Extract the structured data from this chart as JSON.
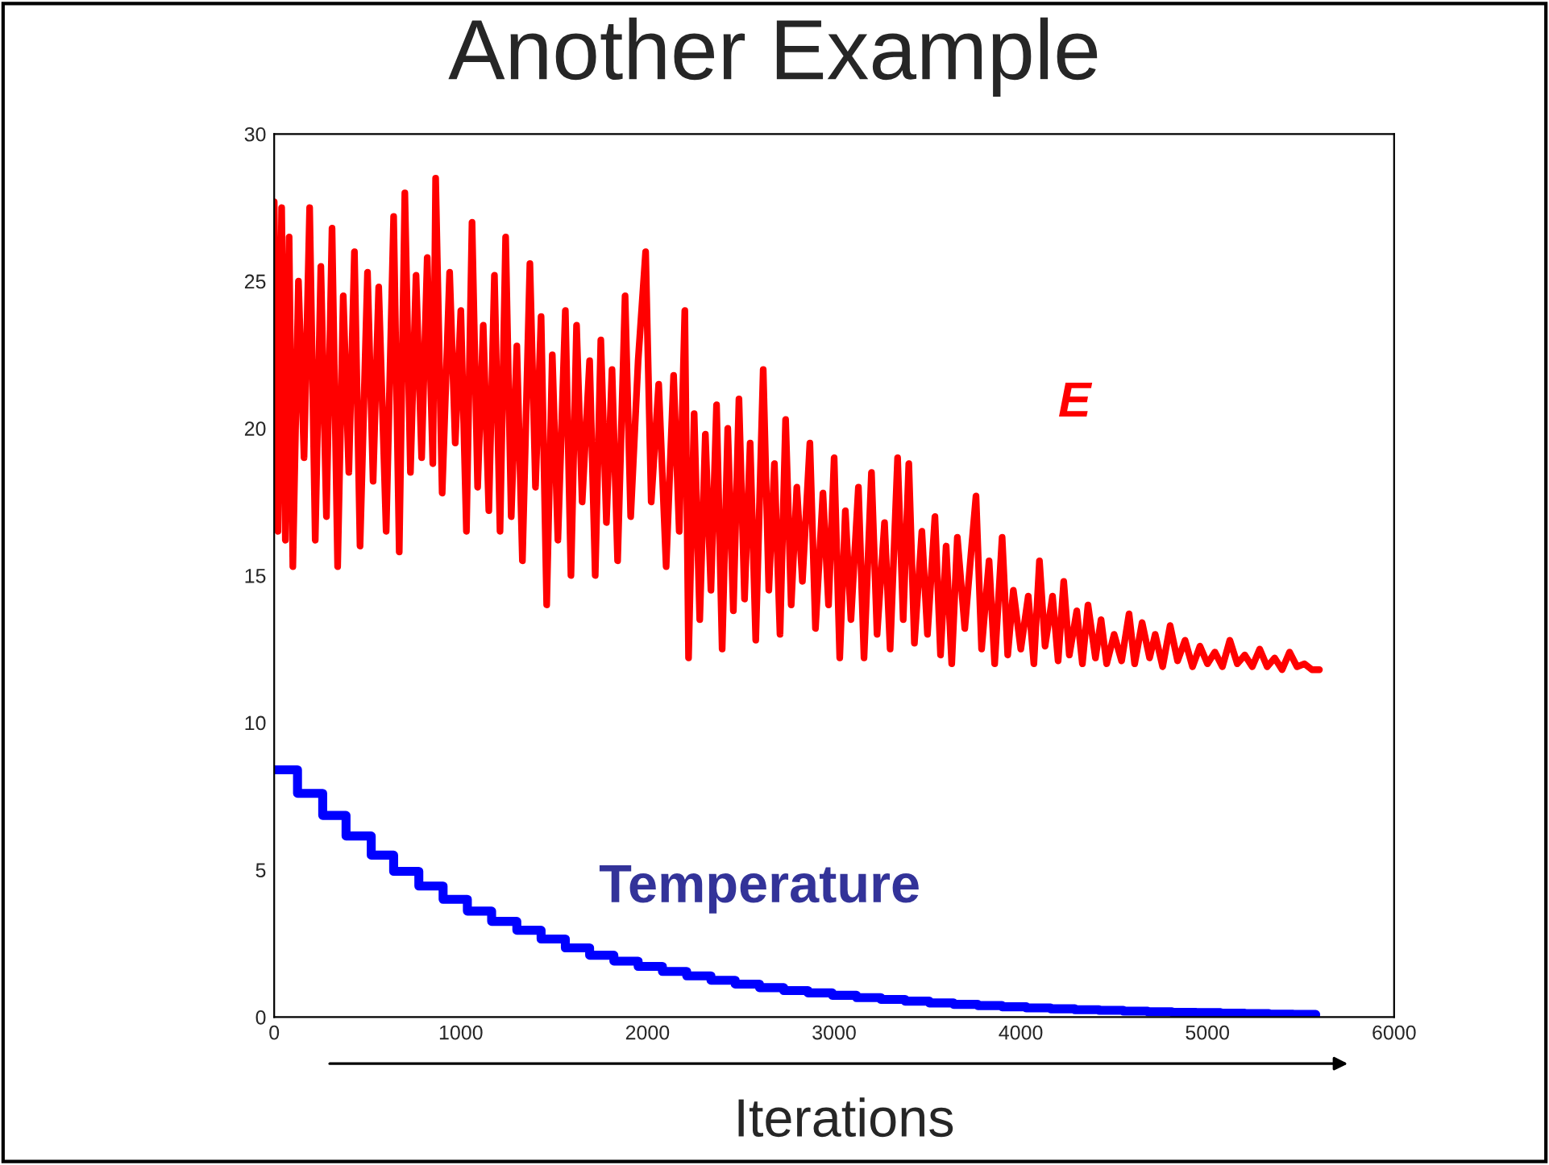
{
  "chart_data": {
    "type": "line",
    "title": "Another Example",
    "xlabel": "Iterations",
    "xlim": [
      0,
      6000
    ],
    "xticks": [
      0,
      1000,
      2000,
      3000,
      4000,
      5000,
      6000
    ],
    "ylim": [
      0,
      30
    ],
    "yticks": [
      0,
      5,
      10,
      15,
      20,
      25,
      30
    ],
    "grid": false,
    "legend": false,
    "series": [
      {
        "name": "E",
        "color": "#ff0000",
        "x": [
          0,
          20,
          40,
          60,
          80,
          100,
          130,
          160,
          190,
          220,
          250,
          280,
          310,
          340,
          370,
          400,
          430,
          460,
          500,
          530,
          560,
          600,
          640,
          670,
          700,
          730,
          760,
          790,
          820,
          850,
          865,
          900,
          940,
          970,
          1000,
          1030,
          1060,
          1090,
          1120,
          1150,
          1180,
          1210,
          1240,
          1270,
          1300,
          1330,
          1370,
          1400,
          1430,
          1460,
          1490,
          1520,
          1560,
          1590,
          1620,
          1650,
          1690,
          1720,
          1750,
          1780,
          1810,
          1840,
          1880,
          1910,
          1950,
          1990,
          2020,
          2060,
          2100,
          2140,
          2170,
          2200,
          2220,
          2250,
          2280,
          2310,
          2340,
          2370,
          2400,
          2430,
          2460,
          2490,
          2520,
          2550,
          2580,
          2620,
          2650,
          2680,
          2710,
          2740,
          2770,
          2800,
          2830,
          2870,
          2900,
          2940,
          2970,
          3000,
          3030,
          3060,
          3090,
          3130,
          3160,
          3200,
          3230,
          3270,
          3300,
          3340,
          3370,
          3400,
          3430,
          3470,
          3500,
          3540,
          3570,
          3600,
          3630,
          3660,
          3700,
          3730,
          3760,
          3790,
          3830,
          3860,
          3900,
          3930,
          3960,
          4000,
          4040,
          4070,
          4100,
          4130,
          4170,
          4200,
          4230,
          4260,
          4300,
          4330,
          4360,
          4400,
          4430,
          4460,
          4500,
          4540,
          4580,
          4610,
          4650,
          4690,
          4720,
          4760,
          4800,
          4840,
          4880,
          4920,
          4960,
          5000,
          5040,
          5080,
          5120,
          5160,
          5200,
          5240,
          5280,
          5320,
          5360,
          5400,
          5440,
          5480,
          5520,
          5560,
          5600
        ],
        "values": [
          27.7,
          16.5,
          27.5,
          16.2,
          26.5,
          15.3,
          25.0,
          19.0,
          27.5,
          16.2,
          25.5,
          17.0,
          26.8,
          15.3,
          24.5,
          18.5,
          26.0,
          16.0,
          25.3,
          18.2,
          24.8,
          16.5,
          27.2,
          15.8,
          28.0,
          18.5,
          25.2,
          19.0,
          25.8,
          18.8,
          28.5,
          17.8,
          25.3,
          19.5,
          24.0,
          16.5,
          27.0,
          18.0,
          23.5,
          17.2,
          25.2,
          16.5,
          26.5,
          17.0,
          22.8,
          15.5,
          25.6,
          18.0,
          23.8,
          14.0,
          22.5,
          16.2,
          24.0,
          15.0,
          23.5,
          17.5,
          22.3,
          15.0,
          23.0,
          16.8,
          22.0,
          15.5,
          24.5,
          17.0,
          22.3,
          26.0,
          17.5,
          21.5,
          15.3,
          21.8,
          16.5,
          24.0,
          12.2,
          20.5,
          13.5,
          19.8,
          14.5,
          20.8,
          12.5,
          20.0,
          13.8,
          21.0,
          14.2,
          19.5,
          12.8,
          22.0,
          14.5,
          18.8,
          13.0,
          20.3,
          14.0,
          18.0,
          14.8,
          19.5,
          13.2,
          17.8,
          14.0,
          19.0,
          12.2,
          17.2,
          13.5,
          18.0,
          12.2,
          18.5,
          13.0,
          16.8,
          12.5,
          19.0,
          13.5,
          18.8,
          12.7,
          16.5,
          13.0,
          17.0,
          12.3,
          16.0,
          12.0,
          16.3,
          13.2,
          15.5,
          17.7,
          12.5,
          15.5,
          12.0,
          16.3,
          12.3,
          14.5,
          12.5,
          14.3,
          12.0,
          15.5,
          12.6,
          14.3,
          12.1,
          14.8,
          12.3,
          13.8,
          12.0,
          14.0,
          12.2,
          13.5,
          12.0,
          13.0,
          12.1,
          13.7,
          12.0,
          13.4,
          12.2,
          13.0,
          11.9,
          13.3,
          12.1,
          12.8,
          11.9,
          12.6,
          12.0,
          12.4,
          11.9,
          12.8,
          12.0,
          12.3,
          11.9,
          12.5,
          11.9,
          12.2,
          11.8,
          12.4,
          11.9,
          12.0,
          11.8,
          11.8
        ]
      },
      {
        "name": "Temperature",
        "type": "step",
        "color": "#0000ff",
        "x": [
          0,
          125,
          260,
          385,
          520,
          640,
          775,
          905,
          1035,
          1165,
          1300,
          1430,
          1560,
          1690,
          1820,
          1950,
          2080,
          2210,
          2340,
          2470,
          2600,
          2730,
          2860,
          2990,
          3120,
          3250,
          3380,
          3510,
          3640,
          3770,
          3900,
          4030,
          4160,
          4290,
          4420,
          4550,
          4680,
          4810,
          4940,
          5070,
          5200,
          5330,
          5460,
          5580
        ],
        "values": [
          8.4,
          7.6,
          6.85,
          6.15,
          5.5,
          4.95,
          4.45,
          4.0,
          3.6,
          3.25,
          2.95,
          2.65,
          2.35,
          2.1,
          1.9,
          1.72,
          1.55,
          1.4,
          1.25,
          1.12,
          1.0,
          0.9,
          0.82,
          0.74,
          0.66,
          0.6,
          0.54,
          0.48,
          0.43,
          0.39,
          0.35,
          0.31,
          0.28,
          0.25,
          0.23,
          0.2,
          0.18,
          0.16,
          0.15,
          0.13,
          0.12,
          0.1,
          0.09,
          0.08
        ]
      }
    ]
  }
}
